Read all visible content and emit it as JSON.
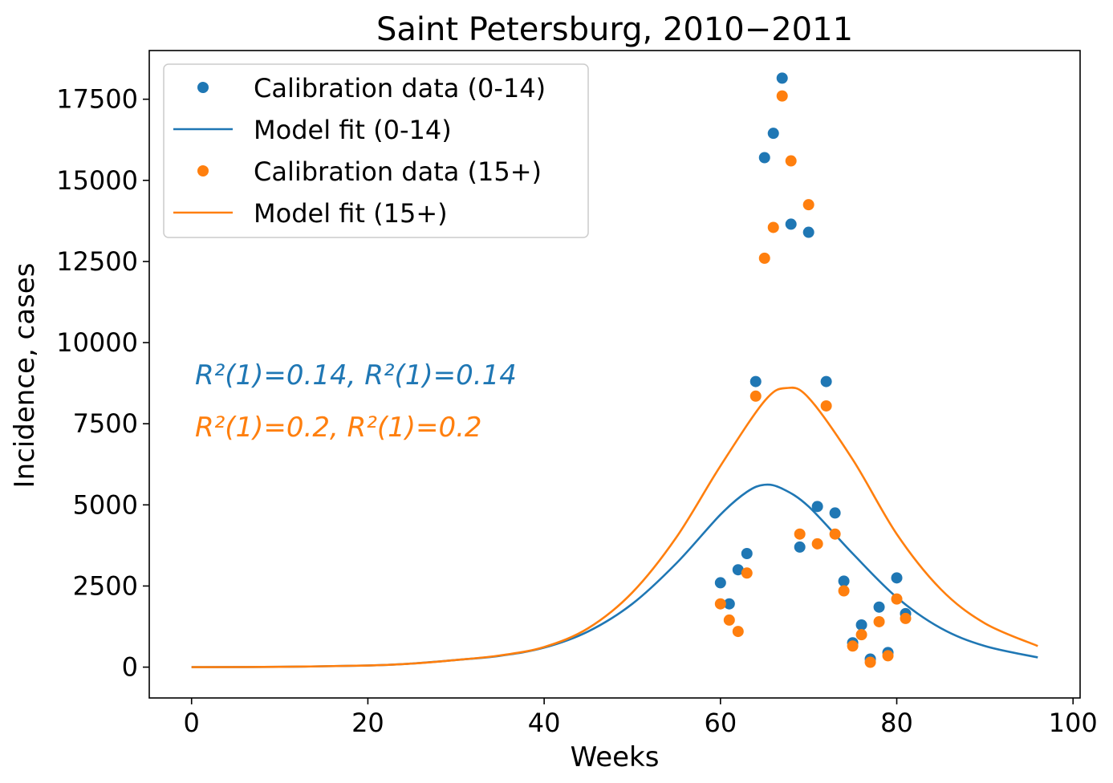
{
  "chart_data": {
    "type": "line",
    "title": "Saint Petersburg, 2010−2011",
    "xlabel": "Weeks",
    "ylabel": "Incidence, cases",
    "xlim": [
      -4.8,
      100.8
    ],
    "ylim": [
      -950,
      19000
    ],
    "x_ticks": [
      0,
      20,
      40,
      60,
      80,
      100
    ],
    "x_tick_labels": [
      "0",
      "20",
      "40",
      "60",
      "80",
      "100"
    ],
    "y_ticks": [
      0,
      2500,
      5000,
      7500,
      10000,
      12500,
      15000,
      17500
    ],
    "y_tick_labels": [
      "0",
      "2500",
      "5000",
      "7500",
      "10000",
      "12500",
      "15000",
      "17500"
    ],
    "grid": false,
    "legend_position": "upper-left",
    "legend": [
      {
        "label": "Calibration data (0-14)",
        "kind": "marker",
        "color": "#1f77b4"
      },
      {
        "label": "Model fit (0-14)",
        "kind": "line",
        "color": "#1f77b4"
      },
      {
        "label": "Calibration data (15+)",
        "kind": "marker",
        "color": "#ff7f0e"
      },
      {
        "label": "Model fit (15+)",
        "kind": "line",
        "color": "#ff7f0e"
      }
    ],
    "annotations": [
      {
        "text": "R²(1)=0.14, R²(1)=0.14",
        "color": "#1f77b4"
      },
      {
        "text": "R²(1)=0.2, R²(1)=0.2",
        "color": "#ff7f0e"
      }
    ],
    "scatter_series": [
      {
        "name": "Calibration data (0-14)",
        "color": "#1f77b4",
        "x": [
          60,
          61,
          62,
          63,
          64,
          65,
          66,
          67,
          68,
          70,
          69,
          71,
          72,
          73,
          74,
          75,
          76,
          77,
          78,
          79,
          80,
          81
        ],
        "y": [
          2600,
          1950,
          3000,
          3500,
          8800,
          15700,
          16450,
          18150,
          13650,
          13400,
          3700,
          4950,
          8800,
          4750,
          2650,
          750,
          1300,
          250,
          1850,
          450,
          2750,
          1650
        ]
      },
      {
        "name": "Calibration data (15+)",
        "color": "#ff7f0e",
        "x": [
          60,
          61,
          62,
          63,
          64,
          65,
          66,
          67,
          68,
          70,
          69,
          71,
          72,
          73,
          74,
          75,
          76,
          77,
          78,
          79,
          80,
          81
        ],
        "y": [
          1950,
          1450,
          1100,
          2900,
          8350,
          12600,
          13550,
          17600,
          15600,
          14250,
          4100,
          3800,
          8050,
          4100,
          2350,
          650,
          1000,
          150,
          1400,
          350,
          2100,
          1500
        ]
      }
    ],
    "line_series": [
      {
        "name": "Model fit (0-14)",
        "color": "#1f77b4",
        "x": [
          0,
          10,
          20,
          25,
          30,
          35,
          40,
          45,
          50,
          55,
          60,
          63,
          65,
          67,
          70,
          75,
          80,
          85,
          90,
          96
        ],
        "y": [
          0,
          10,
          50,
          110,
          220,
          350,
          600,
          1100,
          1950,
          3200,
          4700,
          5400,
          5620,
          5500,
          4950,
          3500,
          2150,
          1200,
          650,
          300
        ]
      },
      {
        "name": "Model fit (15+)",
        "color": "#ff7f0e",
        "x": [
          0,
          10,
          20,
          25,
          30,
          35,
          40,
          45,
          50,
          55,
          60,
          65,
          67.5,
          70,
          75,
          80,
          85,
          90,
          96
        ],
        "y": [
          0,
          10,
          50,
          110,
          220,
          360,
          620,
          1200,
          2300,
          4000,
          6200,
          8200,
          8600,
          8300,
          6400,
          4100,
          2400,
          1350,
          650
        ]
      }
    ]
  }
}
